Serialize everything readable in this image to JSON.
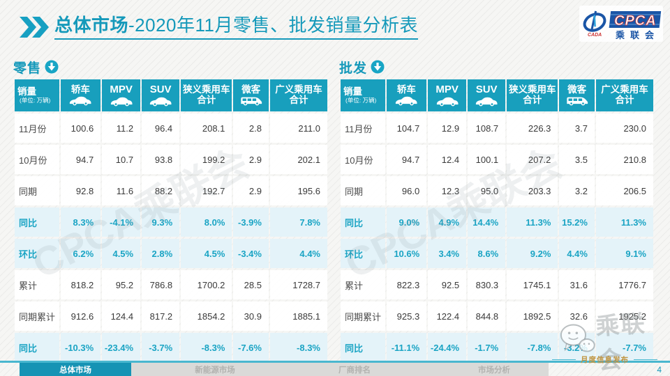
{
  "title": {
    "bold": "总体市场",
    "rest": "-2020年11月零售、批发销量分析表"
  },
  "logo": {
    "name": "CPCA",
    "org": "乘联会",
    "sub": "CADA"
  },
  "table_columns": [
    {
      "label": "销量",
      "sub": "(单位: 万辆)"
    },
    {
      "label": "轿车",
      "icon": "car"
    },
    {
      "label": "MPV",
      "icon": "car",
      "en": true
    },
    {
      "label": "SUV",
      "icon": "car",
      "en": true
    },
    {
      "label": "狭义乘用车",
      "label2": "合计"
    },
    {
      "label": "微客",
      "icon": "van"
    },
    {
      "label": "广义乘用车",
      "label2": "合计"
    }
  ],
  "tables": [
    {
      "id": "retail",
      "label": "零售",
      "rows": [
        {
          "label": "11月份",
          "type": "normal",
          "values": [
            "100.6",
            "11.2",
            "96.4",
            "208.1",
            "2.8",
            "211.0"
          ]
        },
        {
          "label": "10月份",
          "type": "normal",
          "values": [
            "94.7",
            "10.7",
            "93.8",
            "199.2",
            "2.9",
            "202.1"
          ]
        },
        {
          "label": "同期",
          "type": "normal",
          "values": [
            "92.8",
            "11.6",
            "88.2",
            "192.7",
            "2.9",
            "195.6"
          ]
        },
        {
          "label": "同比",
          "type": "percent",
          "values": [
            "8.3%",
            "-4.1%",
            "9.3%",
            "8.0%",
            "-3.9%",
            "7.8%"
          ]
        },
        {
          "label": "环比",
          "type": "percent",
          "values": [
            "6.2%",
            "4.5%",
            "2.8%",
            "4.5%",
            "-3.4%",
            "4.4%"
          ]
        },
        {
          "label": "累计",
          "type": "normal",
          "values": [
            "818.2",
            "95.2",
            "786.8",
            "1700.2",
            "28.5",
            "1728.7"
          ]
        },
        {
          "label": "同期累计",
          "type": "normal",
          "values": [
            "912.6",
            "124.4",
            "817.2",
            "1854.2",
            "30.9",
            "1885.1"
          ]
        },
        {
          "label": "同比",
          "type": "percent",
          "values": [
            "-10.3%",
            "-23.4%",
            "-3.7%",
            "-8.3%",
            "-7.6%",
            "-8.3%"
          ]
        }
      ]
    },
    {
      "id": "wholesale",
      "label": "批发",
      "rows": [
        {
          "label": "11月份",
          "type": "normal",
          "values": [
            "104.7",
            "12.9",
            "108.7",
            "226.3",
            "3.7",
            "230.0"
          ]
        },
        {
          "label": "10月份",
          "type": "normal",
          "values": [
            "94.7",
            "12.4",
            "100.1",
            "207.2",
            "3.5",
            "210.8"
          ]
        },
        {
          "label": "同期",
          "type": "normal",
          "values": [
            "96.0",
            "12.3",
            "95.0",
            "203.3",
            "3.2",
            "206.5"
          ]
        },
        {
          "label": "同比",
          "type": "percent",
          "values": [
            "9.0%",
            "4.9%",
            "14.4%",
            "11.3%",
            "15.2%",
            "11.3%"
          ]
        },
        {
          "label": "环比",
          "type": "percent",
          "values": [
            "10.6%",
            "3.4%",
            "8.6%",
            "9.2%",
            "4.4%",
            "9.1%"
          ]
        },
        {
          "label": "累计",
          "type": "normal",
          "values": [
            "822.3",
            "92.5",
            "830.3",
            "1745.1",
            "31.6",
            "1776.7"
          ]
        },
        {
          "label": "同期累计",
          "type": "normal",
          "values": [
            "925.3",
            "122.4",
            "844.8",
            "1892.5",
            "32.6",
            "1925.2"
          ]
        },
        {
          "label": "同比",
          "type": "percent",
          "values": [
            "-11.1%",
            "-24.4%",
            "-1.7%",
            "-7.8%",
            "-3.2%",
            "-7.7%"
          ]
        }
      ]
    }
  ],
  "footer": {
    "tabs": [
      {
        "label": "总体市场",
        "active": true
      },
      {
        "label": "新能源市场",
        "active": false
      },
      {
        "label": "厂商排名",
        "active": false
      },
      {
        "label": "市场分析",
        "active": false
      }
    ],
    "publish_label": "月度信息发布",
    "page_number": "4"
  },
  "watermark": {
    "diagonal_text": "CPCA乘联会",
    "wechat_text": "乘联会"
  },
  "colors": {
    "teal_header": "#189fbd",
    "teal_text": "#1aa4c4",
    "percent_row_bg": "#e4f3f9",
    "gold": "#bf9440"
  }
}
